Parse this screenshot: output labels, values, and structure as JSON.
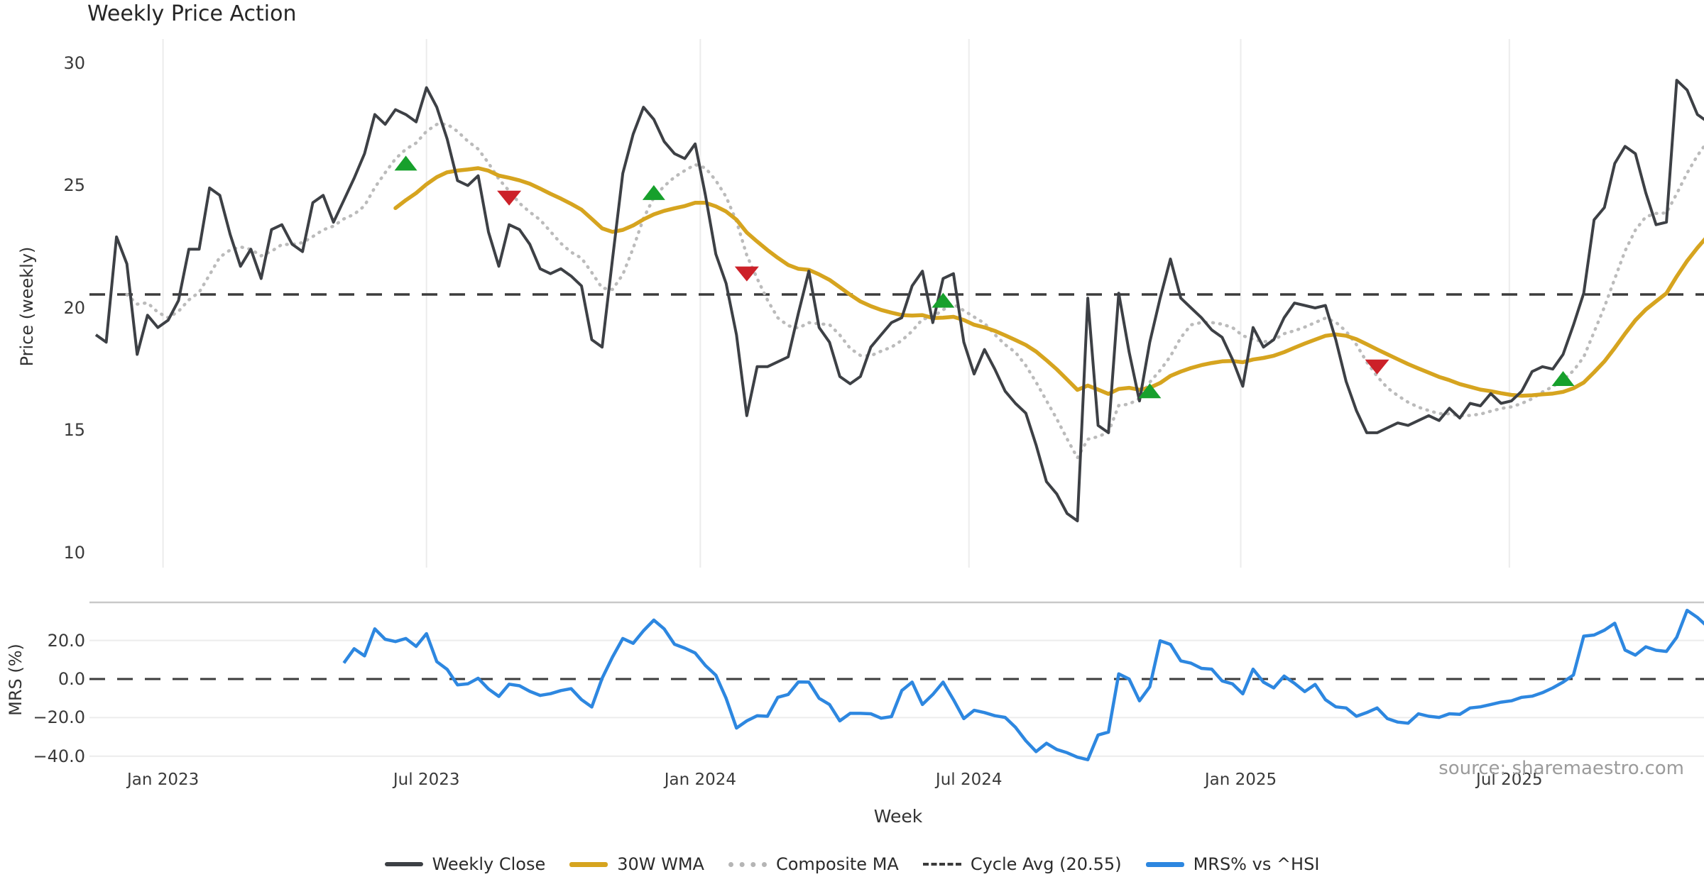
{
  "title": "Weekly Price Action",
  "source_note": "source: sharemaestro.com",
  "axes": {
    "price": {
      "label": "Price (weekly)",
      "tick_values": [
        30,
        25,
        20,
        15,
        10
      ],
      "tick_labels": [
        "30",
        "25",
        "20",
        "15",
        "10"
      ]
    },
    "mrs": {
      "label": "MRS (%)",
      "tick_values": [
        20,
        0,
        -20,
        -40
      ],
      "tick_labels": [
        "20.0",
        "0.0",
        "−20.0",
        "−40.0"
      ]
    },
    "x": {
      "label": "Week",
      "tick_weeks": [
        6.5,
        32.0,
        58.5,
        84.5,
        110.8,
        136.8
      ],
      "tick_labels": [
        "Jan 2023",
        "Jul 2023",
        "Jan 2024",
        "Jul 2024",
        "Jan 2025",
        "Jul 2025"
      ]
    }
  },
  "legend": {
    "items": [
      {
        "label": "Weekly Close",
        "style": "solid-dark"
      },
      {
        "label": "30W WMA",
        "style": "solid-gold"
      },
      {
        "label": "Composite MA",
        "style": "dotted"
      },
      {
        "label": "Cycle Avg (20.55)",
        "style": "dashed"
      },
      {
        "label": "MRS% vs ^HSI",
        "style": "solid-blue"
      }
    ]
  },
  "colors": {
    "close": "#3d4045",
    "wma": "#d6a41f",
    "composite": "#bbbbbb",
    "cycle_avg": "#3b3b3b",
    "mrs": "#2d87e0",
    "buy_marker": "#17a02c",
    "sell_marker": "#cc2129",
    "grid": "#ececec",
    "panel_spine": "#c9c9c9"
  },
  "chart_data": {
    "type": "line",
    "x_unit": "week-index",
    "title": "Weekly Price Action",
    "xlabel": "Week",
    "panels": [
      {
        "name": "price",
        "ylabel": "Price (weekly)",
        "ylim": [
          9.3,
          30.9
        ],
        "grid": "vertical"
      },
      {
        "name": "mrs",
        "ylabel": "MRS (%)",
        "ylim": [
          -46,
          40
        ],
        "grid": "horizontal"
      }
    ],
    "cycle_avg": 20.55,
    "mrs_baseline": 0.0,
    "derived": {
      "wma": {
        "name": "30W WMA",
        "type": "weighted-ma",
        "window": 30
      },
      "composite": {
        "name": "Composite MA",
        "type": "mean-of-smas",
        "windows": [
          4,
          8,
          13
        ],
        "start": 3
      }
    },
    "series": {
      "weekly_close": [
        18.9,
        18.6,
        22.9,
        21.8,
        18.1,
        19.7,
        19.2,
        19.5,
        20.3,
        22.4,
        22.4,
        24.9,
        24.6,
        23.0,
        21.7,
        22.4,
        21.2,
        23.2,
        23.4,
        22.6,
        22.3,
        24.3,
        24.6,
        23.5,
        24.4,
        25.3,
        26.3,
        27.9,
        27.5,
        28.1,
        27.9,
        27.6,
        29.0,
        28.2,
        26.9,
        25.2,
        25.0,
        25.4,
        23.1,
        21.7,
        23.4,
        23.2,
        22.6,
        21.6,
        21.4,
        21.6,
        21.3,
        20.9,
        18.7,
        18.4,
        22.0,
        25.5,
        27.1,
        28.2,
        27.7,
        26.8,
        26.3,
        26.1,
        26.7,
        24.6,
        22.2,
        21.0,
        18.9,
        15.6,
        17.6,
        17.6,
        17.8,
        18.0,
        19.8,
        21.5,
        19.2,
        18.6,
        17.2,
        16.9,
        17.2,
        18.4,
        18.9,
        19.4,
        19.6,
        20.9,
        21.5,
        19.4,
        21.2,
        21.4,
        18.6,
        17.3,
        18.3,
        17.5,
        16.6,
        16.1,
        15.7,
        14.4,
        12.9,
        12.4,
        11.6,
        11.3,
        20.4,
        15.2,
        14.9,
        20.6,
        18.2,
        16.2,
        18.6,
        20.4,
        22.0,
        20.4,
        20.0,
        19.6,
        19.1,
        18.8,
        17.9,
        16.8,
        19.2,
        18.4,
        18.7,
        19.6,
        20.2,
        20.1,
        20.0,
        20.1,
        18.7,
        17.0,
        15.8,
        14.9,
        14.9,
        15.1,
        15.3,
        15.2,
        15.4,
        15.6,
        15.4,
        15.9,
        15.5,
        16.1,
        16.0,
        16.5,
        16.1,
        16.2,
        16.6,
        17.4,
        17.6,
        17.5,
        18.1,
        19.3,
        20.6,
        23.6,
        24.1,
        25.9,
        26.6,
        26.3,
        24.7,
        23.4,
        23.5,
        29.3,
        28.9,
        27.9,
        27.6
      ],
      "mrs_pct": [
        null,
        null,
        null,
        null,
        null,
        null,
        null,
        null,
        null,
        null,
        null,
        null,
        null,
        null,
        null,
        null,
        null,
        null,
        null,
        null,
        null,
        null,
        null,
        null,
        8.3,
        15.7,
        12.0,
        26.0,
        20.6,
        19.4,
        21.0,
        16.9,
        23.5,
        9.0,
        5.0,
        -3.0,
        -2.5,
        0.4,
        -5.2,
        -9.0,
        -2.7,
        -3.5,
        -6.4,
        -8.5,
        -7.6,
        -6.0,
        -5.0,
        -10.7,
        -14.5,
        0.4,
        11.4,
        21.0,
        18.5,
        25.0,
        30.5,
        26.0,
        18.0,
        16.0,
        13.5,
        7.0,
        2.0,
        -10.0,
        -25.4,
        -21.7,
        -19.0,
        -19.3,
        -9.5,
        -8.0,
        -1.5,
        -1.6,
        -10.0,
        -13.2,
        -21.7,
        -17.8,
        -17.8,
        -18.0,
        -20.3,
        -19.5,
        -6.0,
        -1.6,
        -13.2,
        -8.0,
        -1.6,
        -10.7,
        -20.5,
        -16.2,
        -17.4,
        -19.0,
        -19.9,
        -25.0,
        -32.0,
        -37.6,
        -33.3,
        -36.5,
        -38.2,
        -40.5,
        -41.8,
        -29.0,
        -27.5,
        2.7,
        0.0,
        -11.3,
        -4.0,
        19.8,
        17.9,
        9.4,
        8.2,
        5.5,
        5.1,
        -1.0,
        -2.5,
        -7.7,
        5.1,
        -1.6,
        -4.6,
        1.5,
        -2.2,
        -6.5,
        -2.8,
        -10.7,
        -14.4,
        -15.0,
        -19.3,
        -17.4,
        -15.0,
        -20.5,
        -22.3,
        -22.9,
        -18.0,
        -19.3,
        -19.9,
        -18.0,
        -18.3,
        -15.0,
        -14.4,
        -13.2,
        -12.0,
        -11.3,
        -9.5,
        -8.9,
        -7.1,
        -4.6,
        -1.6,
        2.1,
        22.2,
        22.8,
        25.3,
        28.9,
        15.0,
        12.4,
        16.7,
        14.9,
        14.3,
        21.6,
        35.6,
        31.9,
        27.0
      ]
    },
    "signals": {
      "buy": [
        {
          "week": 30,
          "price": 25.9
        },
        {
          "week": 54,
          "price": 24.7
        },
        {
          "week": 82,
          "price": 20.3
        },
        {
          "week": 102,
          "price": 16.6
        },
        {
          "week": 142,
          "price": 17.1
        }
      ],
      "sell": [
        {
          "week": 40,
          "price": 24.5
        },
        {
          "week": 63,
          "price": 21.4
        },
        {
          "week": 124,
          "price": 17.6
        }
      ]
    }
  }
}
